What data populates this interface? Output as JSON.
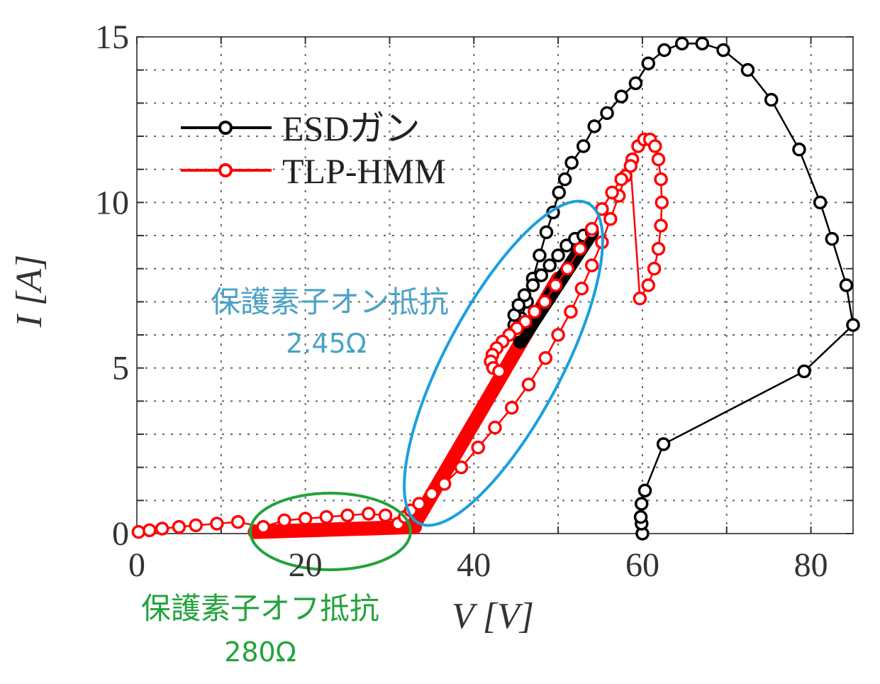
{
  "chart_data": {
    "type": "scatter",
    "xlabel": "V [V]",
    "ylabel": "I [A]",
    "xlim": [
      0,
      85
    ],
    "ylim": [
      0,
      15
    ],
    "x_ticks": [
      "0",
      "20",
      "40",
      "60",
      "80"
    ],
    "y_ticks": [
      "0",
      "5",
      "10",
      "15"
    ],
    "grid": true,
    "legend_position": "top-left",
    "series": [
      {
        "name": "ESDガン",
        "color": "#000000",
        "x": [
          60,
          59.9,
          59.8,
          59.9,
          60.3,
          62.5,
          79.2,
          85.0,
          84.2,
          82.5,
          81.1,
          78.6,
          75.3,
          72.5,
          69.6,
          67.1,
          64.7,
          62.6,
          60.7,
          59.2,
          57.5,
          55.8,
          54.3,
          53.0,
          51.6,
          50.8,
          50.1,
          49.4,
          48.6,
          47.8,
          47.0,
          46.3,
          45.6,
          45.1,
          44.8,
          44.8,
          45.3,
          46.0,
          47.0,
          48.0,
          49.0,
          50.0,
          51.0,
          52.0,
          53.0,
          54.0
        ],
        "y": [
          0,
          0.3,
          0.5,
          0.9,
          1.3,
          2.7,
          4.9,
          6.3,
          7.5,
          8.9,
          10.0,
          11.6,
          13.1,
          14.0,
          14.6,
          14.8,
          14.8,
          14.6,
          14.2,
          13.6,
          13.2,
          12.7,
          12.3,
          11.7,
          11.2,
          10.7,
          10.3,
          9.7,
          9.1,
          8.4,
          7.7,
          7.0,
          6.5,
          6.1,
          6.3,
          6.6,
          6.9,
          7.2,
          7.5,
          7.8,
          8.1,
          8.4,
          8.7,
          8.9,
          9.0,
          9.1
        ]
      },
      {
        "name": "TLP-HMM",
        "color": "#ff0000",
        "x": [
          0.2,
          1.5,
          3.0,
          5.0,
          7.0,
          9.5,
          12.0,
          15.0,
          17.5,
          20.0,
          22.5,
          25.0,
          27.5,
          29.5,
          31.0,
          31.8,
          32.5,
          33.5,
          35.0,
          36.5,
          38.5,
          40.5,
          42.5,
          44.5,
          46.5,
          48.5,
          50.0,
          51.5,
          52.8,
          54.0,
          55.2,
          56.2,
          57.2,
          58.0,
          58.8,
          59.5,
          60.2,
          60.9,
          61.5,
          61.9,
          62.2,
          62.3,
          62.2,
          61.9,
          61.4,
          60.7,
          59.7,
          58.6,
          57.5,
          56.4,
          55.2,
          54.0,
          52.6,
          51.1,
          49.7,
          48.4,
          47.2,
          46.1,
          45.1,
          44.2,
          43.4,
          42.7,
          42.2,
          42.0,
          42.3,
          43.0
        ],
        "y": [
          0.05,
          0.1,
          0.15,
          0.2,
          0.25,
          0.3,
          0.35,
          0.2,
          0.4,
          0.45,
          0.5,
          0.55,
          0.6,
          0.55,
          0.3,
          0.5,
          0.7,
          0.9,
          1.2,
          1.5,
          2.0,
          2.6,
          3.2,
          3.8,
          4.5,
          5.3,
          6.0,
          6.7,
          7.4,
          8.1,
          8.8,
          9.5,
          10.2,
          10.8,
          11.3,
          11.7,
          11.9,
          11.9,
          11.7,
          11.3,
          10.7,
          10.0,
          9.3,
          8.6,
          8.0,
          7.5,
          7.1,
          11.1,
          10.7,
          10.3,
          9.8,
          9.2,
          8.6,
          8.0,
          7.5,
          7.0,
          6.7,
          6.4,
          6.2,
          6.0,
          5.8,
          5.6,
          5.4,
          5.2,
          5.0,
          4.9
        ]
      }
    ],
    "fit_lines": [
      {
        "color": "#ff0000",
        "x": [
          14,
          33
        ],
        "y": [
          0.05,
          0.2
        ]
      },
      {
        "color": "#ff0000",
        "x": [
          33,
          50
        ],
        "y": [
          0.3,
          7.7
        ]
      },
      {
        "color": "#000000",
        "x": [
          45.5,
          54
        ],
        "y": [
          5.8,
          9.1
        ]
      }
    ],
    "annotations": [
      {
        "text": "保護素子オン抵抗",
        "color": "#4ba3c7"
      },
      {
        "text": "2.45Ω",
        "color": "#4ba3c7"
      },
      {
        "text": "保護素子オフ抵抗",
        "color": "#22a33c"
      },
      {
        "text": "280Ω",
        "color": "#22a33c"
      }
    ]
  }
}
